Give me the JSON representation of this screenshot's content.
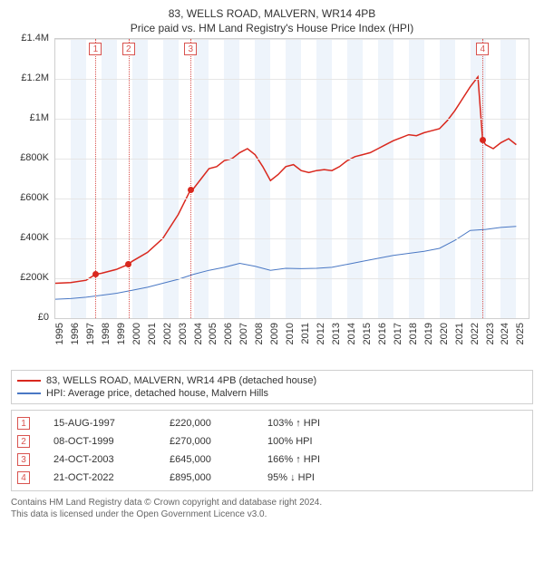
{
  "title": "83, WELLS ROAD, MALVERN, WR14 4PB",
  "subtitle": "Price paid vs. HM Land Registry's House Price Index (HPI)",
  "chart": {
    "type": "line",
    "background_color": "#ffffff",
    "grid_color": "#e6e6e6",
    "border_color": "#cfcfcf",
    "band_color": "#eef4fb",
    "x": {
      "min": 1995,
      "max": 2025.8,
      "ticks": [
        1995,
        1996,
        1997,
        1998,
        1999,
        2000,
        2001,
        2002,
        2003,
        2004,
        2005,
        2006,
        2007,
        2008,
        2009,
        2010,
        2011,
        2012,
        2013,
        2014,
        2015,
        2016,
        2017,
        2018,
        2019,
        2020,
        2021,
        2022,
        2023,
        2024,
        2025
      ]
    },
    "y": {
      "min": 0,
      "max": 1400000,
      "ticks": [
        0,
        200000,
        400000,
        600000,
        800000,
        1000000,
        1200000,
        1400000
      ],
      "labels": [
        "£0",
        "£200K",
        "£400K",
        "£600K",
        "£800K",
        "£1M",
        "£1.2M",
        "£1.4M"
      ]
    },
    "band_years": [
      1996,
      1998,
      2000,
      2002,
      2004,
      2006,
      2008,
      2010,
      2012,
      2014,
      2016,
      2018,
      2020,
      2022,
      2024
    ],
    "series": [
      {
        "name": "83, WELLS ROAD, MALVERN, WR14 4PB (detached house)",
        "color": "#d9281e",
        "width": 1.5,
        "data": [
          [
            1995,
            175000
          ],
          [
            1996,
            178000
          ],
          [
            1997,
            190000
          ],
          [
            1997.62,
            220000
          ],
          [
            1998,
            225000
          ],
          [
            1999,
            245000
          ],
          [
            1999.77,
            270000
          ],
          [
            2000,
            285000
          ],
          [
            2001,
            330000
          ],
          [
            2002,
            400000
          ],
          [
            2003,
            520000
          ],
          [
            2003.81,
            645000
          ],
          [
            2004,
            650000
          ],
          [
            2004.5,
            700000
          ],
          [
            2005,
            750000
          ],
          [
            2005.5,
            760000
          ],
          [
            2006,
            790000
          ],
          [
            2006.5,
            800000
          ],
          [
            2007,
            830000
          ],
          [
            2007.5,
            850000
          ],
          [
            2008,
            820000
          ],
          [
            2008.5,
            760000
          ],
          [
            2009,
            690000
          ],
          [
            2009.5,
            720000
          ],
          [
            2010,
            760000
          ],
          [
            2010.5,
            770000
          ],
          [
            2011,
            740000
          ],
          [
            2011.5,
            730000
          ],
          [
            2012,
            740000
          ],
          [
            2012.5,
            745000
          ],
          [
            2013,
            740000
          ],
          [
            2013.5,
            760000
          ],
          [
            2014,
            790000
          ],
          [
            2014.5,
            810000
          ],
          [
            2015,
            820000
          ],
          [
            2015.5,
            830000
          ],
          [
            2016,
            850000
          ],
          [
            2016.5,
            870000
          ],
          [
            2017,
            890000
          ],
          [
            2017.5,
            905000
          ],
          [
            2018,
            920000
          ],
          [
            2018.5,
            915000
          ],
          [
            2019,
            930000
          ],
          [
            2019.5,
            940000
          ],
          [
            2020,
            950000
          ],
          [
            2020.5,
            990000
          ],
          [
            2021,
            1040000
          ],
          [
            2021.5,
            1100000
          ],
          [
            2022,
            1160000
          ],
          [
            2022.5,
            1210000
          ],
          [
            2022.81,
            895000
          ],
          [
            2023,
            870000
          ],
          [
            2023.5,
            850000
          ],
          [
            2024,
            880000
          ],
          [
            2024.5,
            900000
          ],
          [
            2025,
            870000
          ]
        ]
      },
      {
        "name": "HPI: Average price, detached house, Malvern Hills",
        "color": "#4a78c4",
        "width": 1,
        "data": [
          [
            1995,
            95000
          ],
          [
            1996,
            98000
          ],
          [
            1997,
            105000
          ],
          [
            1998,
            115000
          ],
          [
            1999,
            125000
          ],
          [
            2000,
            140000
          ],
          [
            2001,
            155000
          ],
          [
            2002,
            175000
          ],
          [
            2003,
            195000
          ],
          [
            2004,
            220000
          ],
          [
            2005,
            240000
          ],
          [
            2006,
            255000
          ],
          [
            2007,
            275000
          ],
          [
            2008,
            260000
          ],
          [
            2009,
            240000
          ],
          [
            2010,
            250000
          ],
          [
            2011,
            248000
          ],
          [
            2012,
            250000
          ],
          [
            2013,
            255000
          ],
          [
            2014,
            270000
          ],
          [
            2015,
            285000
          ],
          [
            2016,
            300000
          ],
          [
            2017,
            315000
          ],
          [
            2018,
            325000
          ],
          [
            2019,
            335000
          ],
          [
            2020,
            350000
          ],
          [
            2021,
            390000
          ],
          [
            2022,
            440000
          ],
          [
            2023,
            445000
          ],
          [
            2024,
            455000
          ],
          [
            2025,
            460000
          ]
        ]
      }
    ],
    "markers": [
      {
        "n": "1",
        "year": 1997.62,
        "value": 220000
      },
      {
        "n": "2",
        "year": 1999.77,
        "value": 270000
      },
      {
        "n": "3",
        "year": 2003.81,
        "value": 645000
      },
      {
        "n": "4",
        "year": 2022.81,
        "value": 895000
      }
    ],
    "marker_box_color": "#d9534f",
    "marker_point_color": "#d9281e"
  },
  "legend": [
    {
      "color": "#d9281e",
      "label": "83, WELLS ROAD, MALVERN, WR14 4PB (detached house)"
    },
    {
      "color": "#4a78c4",
      "label": "HPI: Average price, detached house, Malvern Hills"
    }
  ],
  "sales": [
    {
      "n": "1",
      "date": "15-AUG-1997",
      "price": "£220,000",
      "pct": "103% ↑ HPI"
    },
    {
      "n": "2",
      "date": "08-OCT-1999",
      "price": "£270,000",
      "pct": "100%   HPI"
    },
    {
      "n": "3",
      "date": "24-OCT-2003",
      "price": "£645,000",
      "pct": "166% ↑ HPI"
    },
    {
      "n": "4",
      "date": "21-OCT-2022",
      "price": "£895,000",
      "pct": "95% ↓ HPI"
    }
  ],
  "footer_line1": "Contains HM Land Registry data © Crown copyright and database right 2024.",
  "footer_line2": "This data is licensed under the Open Government Licence v3.0."
}
